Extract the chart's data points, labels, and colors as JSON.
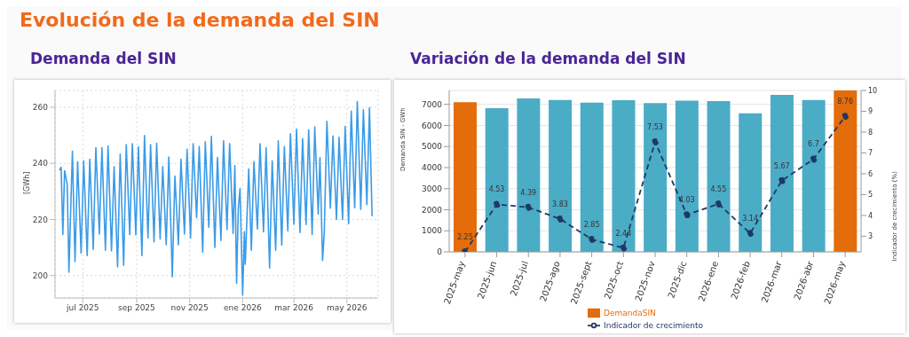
{
  "chart_data": [
    {
      "type": "line",
      "title": "Demanda del SIN",
      "annotations": [
        "Evolución de la demanda del SIN"
      ],
      "ylabel": "[GWh]",
      "xlim": [
        "2025-05-30",
        "2026-06-06"
      ],
      "ylim": [
        192,
        266
      ],
      "yticks": [
        200,
        220,
        240,
        260
      ],
      "xticks": [
        {
          "value": "2025-07-01",
          "label": "jul 2025"
        },
        {
          "value": "2025-09-01",
          "label": "sep 2025"
        },
        {
          "value": "2025-11-01",
          "label": "nov 2025"
        },
        {
          "value": "2026-01-01",
          "label": "ene 2026"
        },
        {
          "value": "2026-03-01",
          "label": "mar 2026"
        },
        {
          "value": "2026-05-01",
          "label": "may 2026"
        }
      ],
      "grid": true,
      "legend": false,
      "marker": "none",
      "line_style": "solid",
      "series": [
        {
          "color": "#3a9be8",
          "x": [
            "2025-06-04",
            "2025-06-06",
            "2025-06-08",
            "2025-06-10",
            "2025-06-13",
            "2025-06-15",
            "2025-06-19",
            "2025-06-22",
            "2025-06-25",
            "2025-06-29",
            "2025-07-02",
            "2025-07-06",
            "2025-07-09",
            "2025-07-13",
            "2025-07-16",
            "2025-07-20",
            "2025-07-23",
            "2025-07-27",
            "2025-07-30",
            "2025-08-03",
            "2025-08-06",
            "2025-08-10",
            "2025-08-13",
            "2025-08-17",
            "2025-08-20",
            "2025-08-24",
            "2025-08-27",
            "2025-08-31",
            "2025-09-03",
            "2025-09-07",
            "2025-09-10",
            "2025-09-14",
            "2025-09-17",
            "2025-09-21",
            "2025-09-24",
            "2025-09-28",
            "2025-10-01",
            "2025-10-05",
            "2025-10-08",
            "2025-10-12",
            "2025-10-15",
            "2025-10-19",
            "2025-10-22",
            "2025-10-26",
            "2025-10-29",
            "2025-11-02",
            "2025-11-05",
            "2025-11-09",
            "2025-11-12",
            "2025-11-16",
            "2025-11-19",
            "2025-11-23",
            "2025-11-26",
            "2025-11-30",
            "2025-12-03",
            "2025-12-07",
            "2025-12-10",
            "2025-12-14",
            "2025-12-17",
            "2025-12-21",
            "2025-12-23",
            "2025-12-25",
            "2025-12-27",
            "2025-12-29",
            "2026-01-01",
            "2026-01-03",
            "2026-01-04",
            "2026-01-08",
            "2026-01-11",
            "2026-01-14",
            "2026-01-18",
            "2026-01-21",
            "2026-01-25",
            "2026-01-28",
            "2026-02-01",
            "2026-02-04",
            "2026-02-08",
            "2026-02-11",
            "2026-02-15",
            "2026-02-18",
            "2026-02-22",
            "2026-02-25",
            "2026-03-01",
            "2026-03-04",
            "2026-03-08",
            "2026-03-11",
            "2026-03-15",
            "2026-03-18",
            "2026-03-22",
            "2026-03-25",
            "2026-03-29",
            "2026-03-31",
            "2026-04-03",
            "2026-04-05",
            "2026-04-08",
            "2026-04-12",
            "2026-04-15",
            "2026-04-19",
            "2026-04-22",
            "2026-04-26",
            "2026-04-29",
            "2026-05-03",
            "2026-05-06",
            "2026-05-10",
            "2026-05-13",
            "2026-05-17",
            "2026-05-20",
            "2026-05-24",
            "2026-05-27",
            "2026-05-30"
          ],
          "values": [
            237.6,
            238.6,
            214.6,
            237.4,
            232.5,
            201.2,
            244.3,
            205,
            240.6,
            208,
            240.9,
            207.1,
            241.5,
            209.3,
            245.6,
            214.8,
            245.6,
            209,
            246.2,
            208.8,
            238.8,
            203.1,
            243.3,
            203.6,
            246.7,
            214.6,
            247,
            214.5,
            245.9,
            207.1,
            249.9,
            213.4,
            246.7,
            212,
            247.2,
            213,
            238.9,
            211,
            242.3,
            199.5,
            235.5,
            211,
            241.5,
            214.8,
            245,
            213.4,
            247,
            220.6,
            246,
            208.3,
            247.7,
            217.2,
            249.6,
            210,
            242.1,
            212.5,
            248,
            216.4,
            247,
            215,
            239.2,
            197.2,
            224,
            231,
            193,
            215.6,
            204,
            238,
            209,
            240.6,
            216.6,
            247,
            215.6,
            245.6,
            202.7,
            240.9,
            209,
            248,
            210.8,
            246,
            215.9,
            250.6,
            218.3,
            252.2,
            215.3,
            248.8,
            218.2,
            252,
            214.6,
            253,
            221.9,
            242,
            205.4,
            215.6,
            255,
            224,
            249.8,
            220,
            249.3,
            220,
            253.2,
            218.5,
            258.6,
            224.1,
            262,
            223.6,
            259.1,
            225.3,
            259.8,
            221.2
          ]
        }
      ]
    },
    {
      "type": "bar",
      "title": "Variación de la demanda del SIN",
      "ylabel": "Demanda SIN - GWh",
      "y2label": "Indicador de crecimiento (%)",
      "categories": [
        "2025-may",
        "2025-jun",
        "2025-jul",
        "2025-ago",
        "2025-sept",
        "2025-oct",
        "2025-nov",
        "2025-dic",
        "2026-ene",
        "2026-feb",
        "2026-mar",
        "2026-abr",
        "2026-may"
      ],
      "ylim": [
        0,
        7660
      ],
      "yticks": [
        0,
        1000,
        2000,
        3000,
        4000,
        5000,
        6000,
        7000
      ],
      "y2lim": [
        2.25,
        10
      ],
      "y2ticks": [
        3,
        4,
        5,
        6,
        7,
        8,
        9,
        10
      ],
      "grid": "y",
      "legend": "bottom",
      "series": [
        {
          "type": "bar",
          "name": "DemandaSIN",
          "color": "#e46c0a",
          "colors": [
            "#e46c0a",
            "#4bacc6",
            "#4bacc6",
            "#4bacc6",
            "#4bacc6",
            "#4bacc6",
            "#4bacc6",
            "#4bacc6",
            "#4bacc6",
            "#4bacc6",
            "#4bacc6",
            "#4bacc6",
            "#e46c0a"
          ],
          "values": [
            7100,
            6820,
            7280,
            7210,
            7080,
            7200,
            7060,
            7180,
            7150,
            6580,
            7450,
            7210,
            7660
          ]
        },
        {
          "type": "line",
          "name": "Indicador de crecimiento",
          "axis": "y2",
          "color": "#1f3864",
          "marker": "circle",
          "line_style": "dashed",
          "values": [
            2.25,
            4.53,
            4.39,
            3.83,
            2.85,
            2.44,
            7.53,
            4.03,
            4.55,
            3.14,
            5.67,
            6.7,
            8.76
          ],
          "value_labels": [
            "2.25",
            "4.53",
            "4.39",
            "3.83",
            "2.85",
            "2.44",
            "7.53",
            "4.03",
            "4.55",
            "3.14",
            "5.67",
            "6.7",
            "8.76"
          ]
        }
      ]
    }
  ]
}
